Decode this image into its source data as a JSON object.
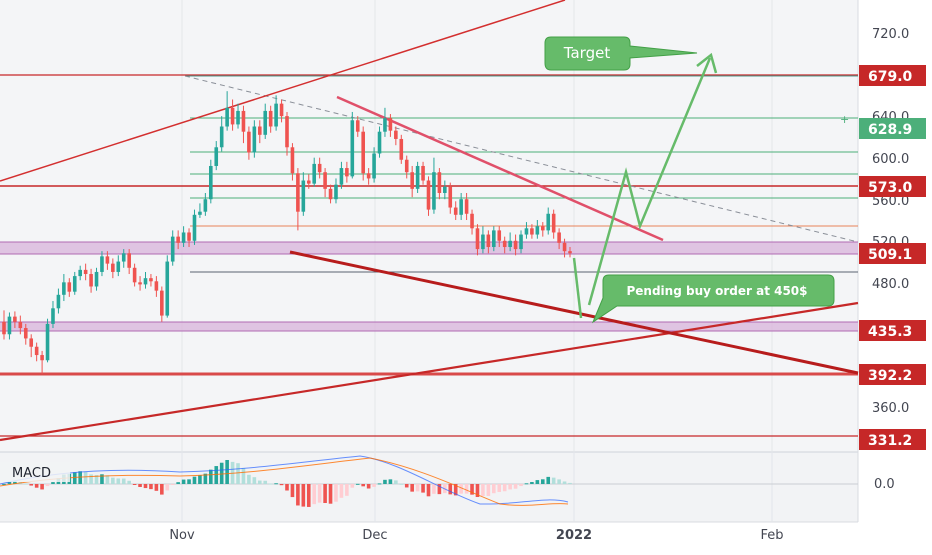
{
  "chart_data": {
    "type": "candlestick",
    "price_axis_ticks": [
      "720.0",
      "640.0",
      "600.0",
      "560.0",
      "520.0",
      "480.0",
      "360.0"
    ],
    "time_axis_labels": [
      "Nov",
      "Dec",
      "2022",
      "Feb"
    ],
    "indicator_label": "MACD",
    "macd_zero_label": "0.0",
    "price_levels": [
      {
        "value": 679.0,
        "label": "679.0",
        "color": "#c62828"
      },
      {
        "value": 628.9,
        "label": "628.9",
        "color": "#4caf7a"
      },
      {
        "value": 573.0,
        "label": "573.0",
        "color": "#c62828"
      },
      {
        "value": 509.1,
        "label": "509.1",
        "color": "#c62828"
      },
      {
        "value": 435.3,
        "label": "435.3",
        "color": "#c62828"
      },
      {
        "value": 392.2,
        "label": "392.2",
        "color": "#c62828"
      },
      {
        "value": 331.2,
        "label": "331.2",
        "color": "#c62828"
      }
    ],
    "annotations": [
      {
        "text": "Target"
      },
      {
        "text": "Pending buy order at 450$"
      }
    ],
    "candles": [
      [
        442,
        430,
        453,
        425
      ],
      [
        430,
        447,
        451,
        425
      ],
      [
        447,
        442,
        452,
        436
      ],
      [
        442,
        436,
        448,
        430
      ],
      [
        436,
        426,
        440,
        420
      ],
      [
        426,
        418,
        430,
        408
      ],
      [
        418,
        410,
        422,
        404
      ],
      [
        410,
        405,
        414,
        392
      ],
      [
        405,
        440,
        445,
        403
      ],
      [
        440,
        455,
        462,
        436
      ],
      [
        455,
        468,
        474,
        450
      ],
      [
        468,
        480,
        488,
        462
      ],
      [
        480,
        471,
        484,
        466
      ],
      [
        471,
        486,
        490,
        468
      ],
      [
        486,
        492,
        496,
        482
      ],
      [
        492,
        488,
        498,
        482
      ],
      [
        488,
        476,
        493,
        470
      ],
      [
        476,
        490,
        494,
        472
      ],
      [
        490,
        505,
        510,
        486
      ],
      [
        505,
        498,
        510,
        492
      ],
      [
        498,
        490,
        503,
        484
      ],
      [
        490,
        500,
        506,
        486
      ],
      [
        500,
        508,
        512,
        494
      ],
      [
        508,
        494,
        512,
        488
      ],
      [
        494,
        480,
        498,
        476
      ],
      [
        480,
        478,
        486,
        472
      ],
      [
        478,
        484,
        490,
        474
      ],
      [
        484,
        481,
        488,
        476
      ],
      [
        481,
        472,
        486,
        466
      ],
      [
        472,
        448,
        476,
        442
      ],
      [
        448,
        500,
        506,
        446
      ],
      [
        500,
        524,
        530,
        496
      ],
      [
        524,
        518,
        530,
        512
      ],
      [
        518,
        528,
        534,
        514
      ],
      [
        528,
        520,
        532,
        514
      ],
      [
        520,
        545,
        550,
        516
      ],
      [
        545,
        548,
        556,
        542
      ],
      [
        548,
        560,
        566,
        544
      ],
      [
        560,
        592,
        598,
        556
      ],
      [
        592,
        610,
        616,
        588
      ],
      [
        610,
        630,
        640,
        606
      ],
      [
        630,
        648,
        664,
        626
      ],
      [
        648,
        632,
        656,
        626
      ],
      [
        632,
        645,
        652,
        628
      ],
      [
        645,
        625,
        650,
        614
      ],
      [
        625,
        605,
        630,
        598
      ],
      [
        605,
        630,
        636,
        600
      ],
      [
        630,
        622,
        636,
        614
      ],
      [
        622,
        645,
        652,
        618
      ],
      [
        645,
        630,
        650,
        624
      ],
      [
        630,
        652,
        660,
        626
      ],
      [
        652,
        640,
        656,
        634
      ],
      [
        640,
        610,
        644,
        602
      ],
      [
        610,
        585,
        614,
        578
      ],
      [
        585,
        548,
        590,
        530
      ],
      [
        548,
        578,
        586,
        544
      ],
      [
        578,
        575,
        584,
        570
      ],
      [
        575,
        594,
        600,
        572
      ],
      [
        594,
        586,
        600,
        580
      ],
      [
        586,
        570,
        590,
        562
      ],
      [
        570,
        560,
        574,
        556
      ],
      [
        560,
        574,
        580,
        556
      ],
      [
        574,
        590,
        596,
        570
      ],
      [
        590,
        582,
        596,
        576
      ],
      [
        582,
        636,
        644,
        580
      ],
      [
        636,
        625,
        640,
        620
      ],
      [
        625,
        585,
        630,
        578
      ],
      [
        585,
        580,
        590,
        574
      ],
      [
        580,
        604,
        610,
        576
      ],
      [
        604,
        625,
        630,
        600
      ],
      [
        625,
        638,
        648,
        620
      ],
      [
        638,
        626,
        642,
        620
      ],
      [
        626,
        618,
        630,
        612
      ],
      [
        618,
        598,
        622,
        594
      ],
      [
        598,
        586,
        602,
        580
      ],
      [
        586,
        570,
        592,
        562
      ],
      [
        570,
        592,
        596,
        566
      ],
      [
        592,
        578,
        596,
        574
      ],
      [
        578,
        550,
        582,
        544
      ],
      [
        550,
        586,
        600,
        546
      ],
      [
        586,
        566,
        590,
        560
      ],
      [
        566,
        572,
        578,
        560
      ],
      [
        572,
        552,
        576,
        546
      ],
      [
        552,
        545,
        558,
        540
      ],
      [
        545,
        560,
        566,
        540
      ],
      [
        560,
        546,
        566,
        540
      ],
      [
        546,
        532,
        550,
        526
      ],
      [
        532,
        512,
        536,
        506
      ],
      [
        512,
        526,
        534,
        508
      ],
      [
        526,
        514,
        530,
        508
      ],
      [
        514,
        530,
        534,
        510
      ],
      [
        530,
        520,
        534,
        514
      ],
      [
        520,
        514,
        524,
        508
      ],
      [
        514,
        520,
        528,
        510
      ],
      [
        520,
        512,
        526,
        506
      ],
      [
        512,
        526,
        530,
        508
      ],
      [
        526,
        532,
        538,
        522
      ],
      [
        532,
        526,
        536,
        522
      ],
      [
        526,
        534,
        540,
        522
      ],
      [
        534,
        530,
        538,
        524
      ],
      [
        530,
        546,
        552,
        526
      ],
      [
        546,
        528,
        550,
        522
      ],
      [
        528,
        518,
        532,
        512
      ],
      [
        518,
        510,
        522,
        504
      ],
      [
        510,
        508,
        514,
        504
      ]
    ]
  }
}
